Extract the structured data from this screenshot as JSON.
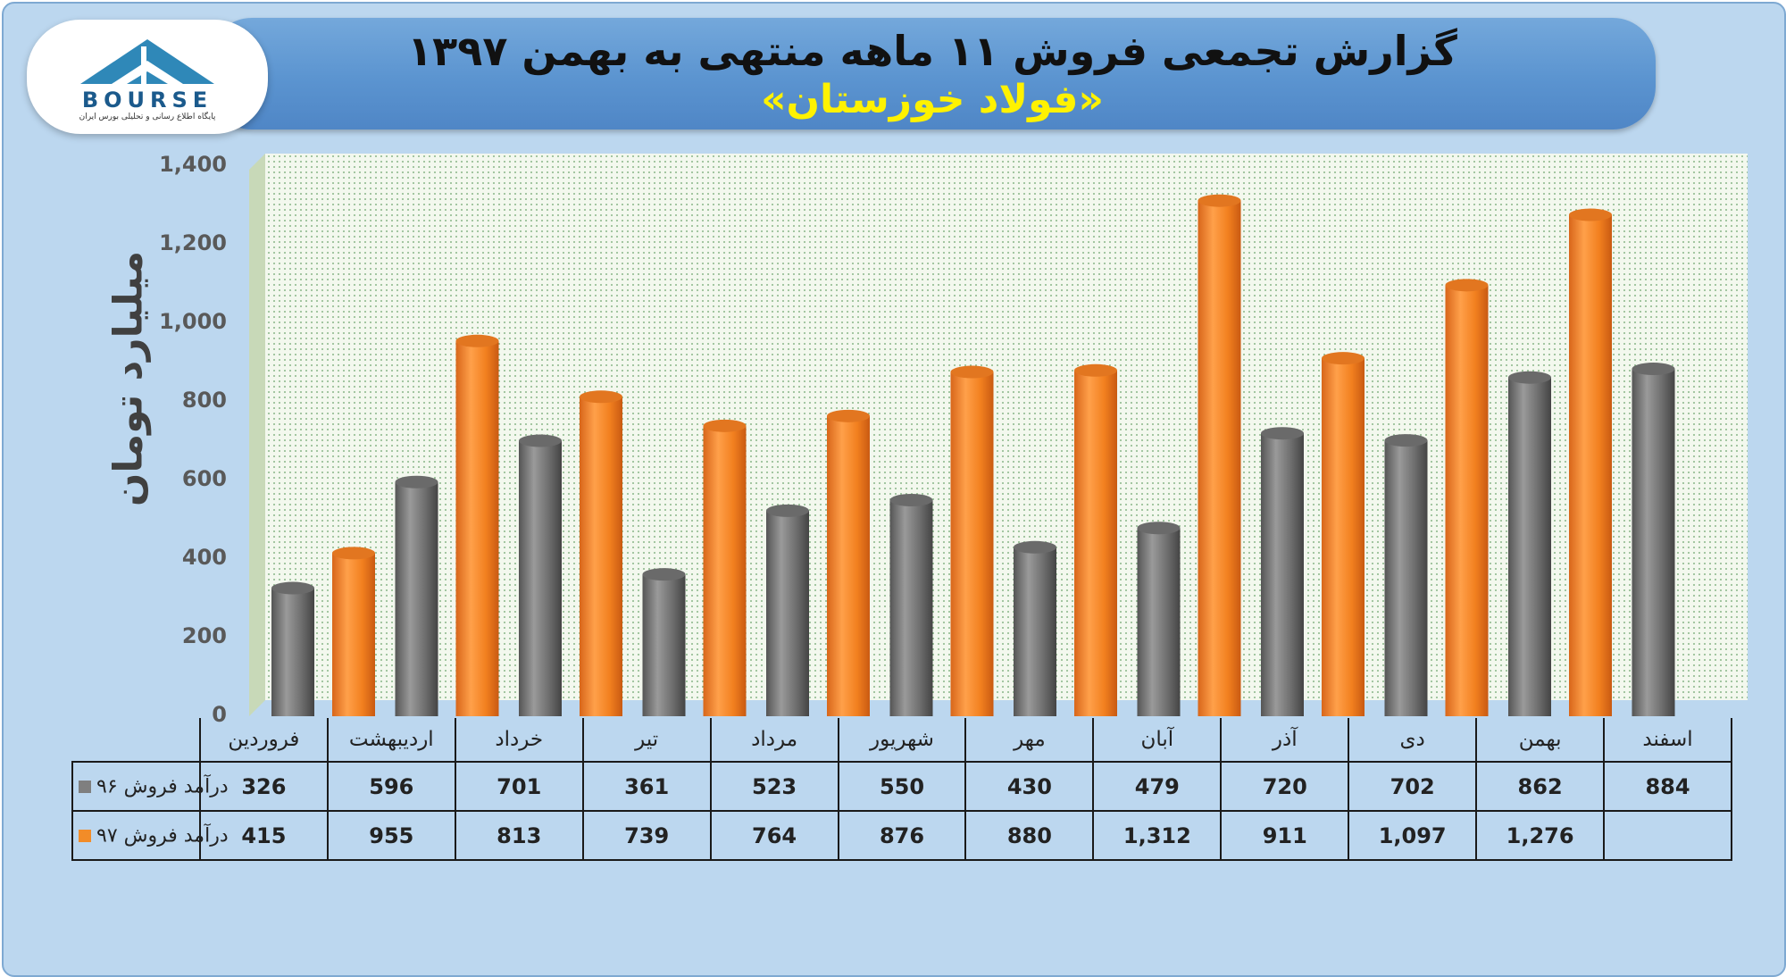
{
  "header": {
    "title_line1": "گزارش تجمعی فروش ۱۱ ماهه منتهی به بهمن ۱۳۹۷",
    "title_line2": "«فولاد خوزستان»"
  },
  "logo": {
    "text": "BOURSE",
    "subtext": "پایگاه اطلاع رسانی و تحلیلی بورس ایران"
  },
  "colors": {
    "series96": "#7f7f7f",
    "series97": "#f28c28",
    "plot_bg": "#edf5e6",
    "title_accent": "#fff200"
  },
  "chart_data": {
    "type": "bar",
    "ylabel": "میلیارد تومان",
    "ylim": [
      0,
      1400
    ],
    "yticks": [
      "0",
      "200",
      "400",
      "600",
      "800",
      "1,000",
      "1,200",
      "1,400"
    ],
    "categories": [
      "فروردین",
      "اردیبهشت",
      "خرداد",
      "تیر",
      "مرداد",
      "شهریور",
      "مهر",
      "آبان",
      "آذر",
      "دی",
      "بهمن",
      "اسفند"
    ],
    "series": [
      {
        "name": "درآمد فروش ۹۶",
        "values": [
          326,
          596,
          701,
          361,
          523,
          550,
          430,
          479,
          720,
          702,
          862,
          884
        ],
        "labels": [
          "326",
          "596",
          "701",
          "361",
          "523",
          "550",
          "430",
          "479",
          "720",
          "702",
          "862",
          "884"
        ]
      },
      {
        "name": "درآمد فروش ۹۷",
        "values": [
          415,
          955,
          813,
          739,
          764,
          876,
          880,
          1312,
          911,
          1097,
          1276,
          null
        ],
        "labels": [
          "415",
          "955",
          "813",
          "739",
          "764",
          "876",
          "880",
          "1,312",
          "911",
          "1,097",
          "1,276",
          ""
        ]
      }
    ],
    "legend": "table-left",
    "grid": false
  }
}
